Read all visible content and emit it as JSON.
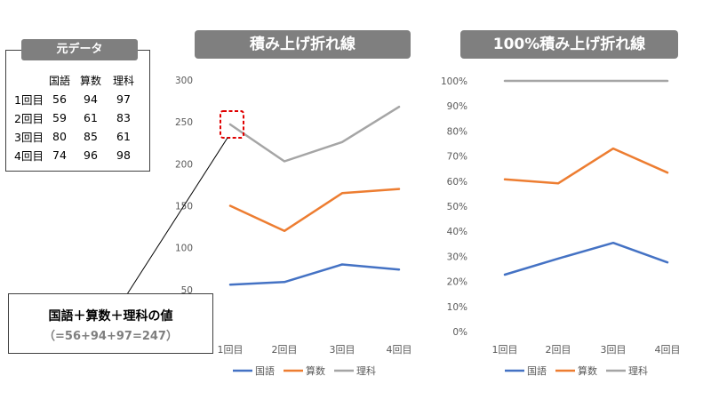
{
  "raw_data": {
    "title": "元データ",
    "headers": [
      "",
      "国語",
      "算数",
      "理科"
    ],
    "rows": [
      [
        "1回目",
        "56",
        "94",
        "97"
      ],
      [
        "2回目",
        "59",
        "61",
        "83"
      ],
      [
        "3回目",
        "80",
        "85",
        "61"
      ],
      [
        "4回目",
        "74",
        "96",
        "98"
      ]
    ]
  },
  "callout": {
    "line1": "国語＋算数＋理科の値",
    "line2": "（=56+94+97=247）"
  },
  "colors": {
    "国語": "#4472c4",
    "算数": "#ed7d31",
    "理科": "#a5a5a5",
    "banner": "#7f7f7f",
    "highlight": "#e00000"
  },
  "chart_data": [
    {
      "type": "line",
      "subtype": "stacked",
      "title": "積み上げ折れ線",
      "categories": [
        "1回目",
        "2回目",
        "3回目",
        "4回目"
      ],
      "series": [
        {
          "name": "国語",
          "values": [
            56,
            59,
            80,
            74
          ]
        },
        {
          "name": "算数",
          "values": [
            150,
            120,
            165,
            170
          ]
        },
        {
          "name": "理科",
          "values": [
            247,
            203,
            226,
            268
          ]
        }
      ],
      "yticks": [
        "50",
        "100",
        "150",
        "200",
        "250",
        "300"
      ],
      "ylim": [
        0,
        300
      ],
      "grid": false,
      "legend": "bottom"
    },
    {
      "type": "line",
      "subtype": "100% stacked",
      "title": "100%積み上げ折れ線",
      "categories": [
        "1回目",
        "2回目",
        "3回目",
        "4回目"
      ],
      "series": [
        {
          "name": "国語",
          "values": [
            22.7,
            29.1,
            35.4,
            27.6
          ]
        },
        {
          "name": "算数",
          "values": [
            60.7,
            59.1,
            73.0,
            63.4
          ]
        },
        {
          "name": "理科",
          "values": [
            100,
            100,
            100,
            100
          ]
        }
      ],
      "yticks": [
        "0%",
        "10%",
        "20%",
        "30%",
        "40%",
        "50%",
        "60%",
        "70%",
        "80%",
        "90%",
        "100%"
      ],
      "ylim": [
        0,
        100
      ],
      "grid": false,
      "legend": "bottom"
    }
  ]
}
